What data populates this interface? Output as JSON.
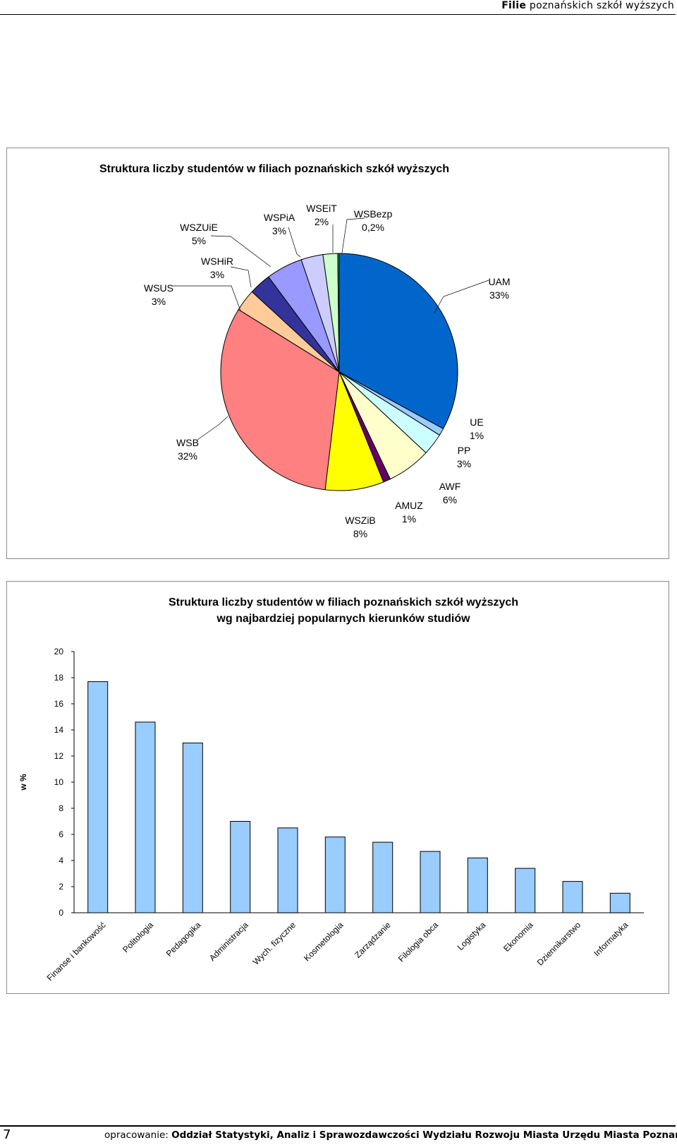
{
  "header": {
    "bold": "Filie",
    "rest": "poznańskich szkół wyższych"
  },
  "chart_data": [
    {
      "type": "pie",
      "title": "Struktura liczby studentów w filiach poznańskich szkół wyższych",
      "slices": [
        {
          "name": "UAM",
          "label": "33%",
          "value": 33,
          "color": "#0066CC"
        },
        {
          "name": "UE",
          "label": "1%",
          "value": 1,
          "color": "#99CCFF"
        },
        {
          "name": "PP",
          "label": "3%",
          "value": 3,
          "color": "#CCFFFF"
        },
        {
          "name": "AWF",
          "label": "6%",
          "value": 6,
          "color": "#FFFFCC"
        },
        {
          "name": "AMUZ",
          "label": "1%",
          "value": 1,
          "color": "#660066"
        },
        {
          "name": "WSZiB",
          "label": "8%",
          "value": 8,
          "color": "#FFFF00"
        },
        {
          "name": "WSB",
          "label": "32%",
          "value": 32,
          "color": "#FF8080"
        },
        {
          "name": "WSUS",
          "label": "3%",
          "value": 3,
          "color": "#FFCC99"
        },
        {
          "name": "WSHiR",
          "label": "3%",
          "value": 3,
          "color": "#333399"
        },
        {
          "name": "WSZUiE",
          "label": "5%",
          "value": 5,
          "color": "#9999FF"
        },
        {
          "name": "WSPiA",
          "label": "3%",
          "value": 3,
          "color": "#CCCCFF"
        },
        {
          "name": "WSEiT",
          "label": "2%",
          "value": 2,
          "color": "#CCFFCC"
        },
        {
          "name": "WSBezp",
          "label": "0,2%",
          "value": 0.2,
          "color": "#339966"
        }
      ]
    },
    {
      "type": "bar",
      "title": "Struktura liczby studentów w filiach poznańskich szkół wyższych",
      "subtitle": "wg najbardziej popularnych kierunków studiów",
      "ylabel": "w %",
      "ylim": [
        0,
        20
      ],
      "yticks": [
        0,
        2,
        4,
        6,
        8,
        10,
        12,
        14,
        16,
        18,
        20
      ],
      "bar_color": "#99CCFF",
      "categories": [
        "Finanse i bankowość",
        "Politologia",
        "Pedagogika",
        "Administracja",
        "Wych. fizyczne",
        "Kosmetologia",
        "Zarządzanie",
        "Filologia obca",
        "Logistyka",
        "Ekonomia",
        "Dziennikarstwo",
        "Informatyka"
      ],
      "values": [
        17.7,
        14.6,
        13.0,
        7.0,
        6.5,
        5.8,
        5.4,
        4.7,
        4.2,
        3.4,
        2.4,
        1.5
      ]
    }
  ],
  "footer": {
    "page_number": "7",
    "prefix": "opracowanie:",
    "author": "Oddział Statystyki, Analiz i Sprawozdawczości Wydziału Rozwoju Miasta Urzędu Miasta Poznania"
  }
}
